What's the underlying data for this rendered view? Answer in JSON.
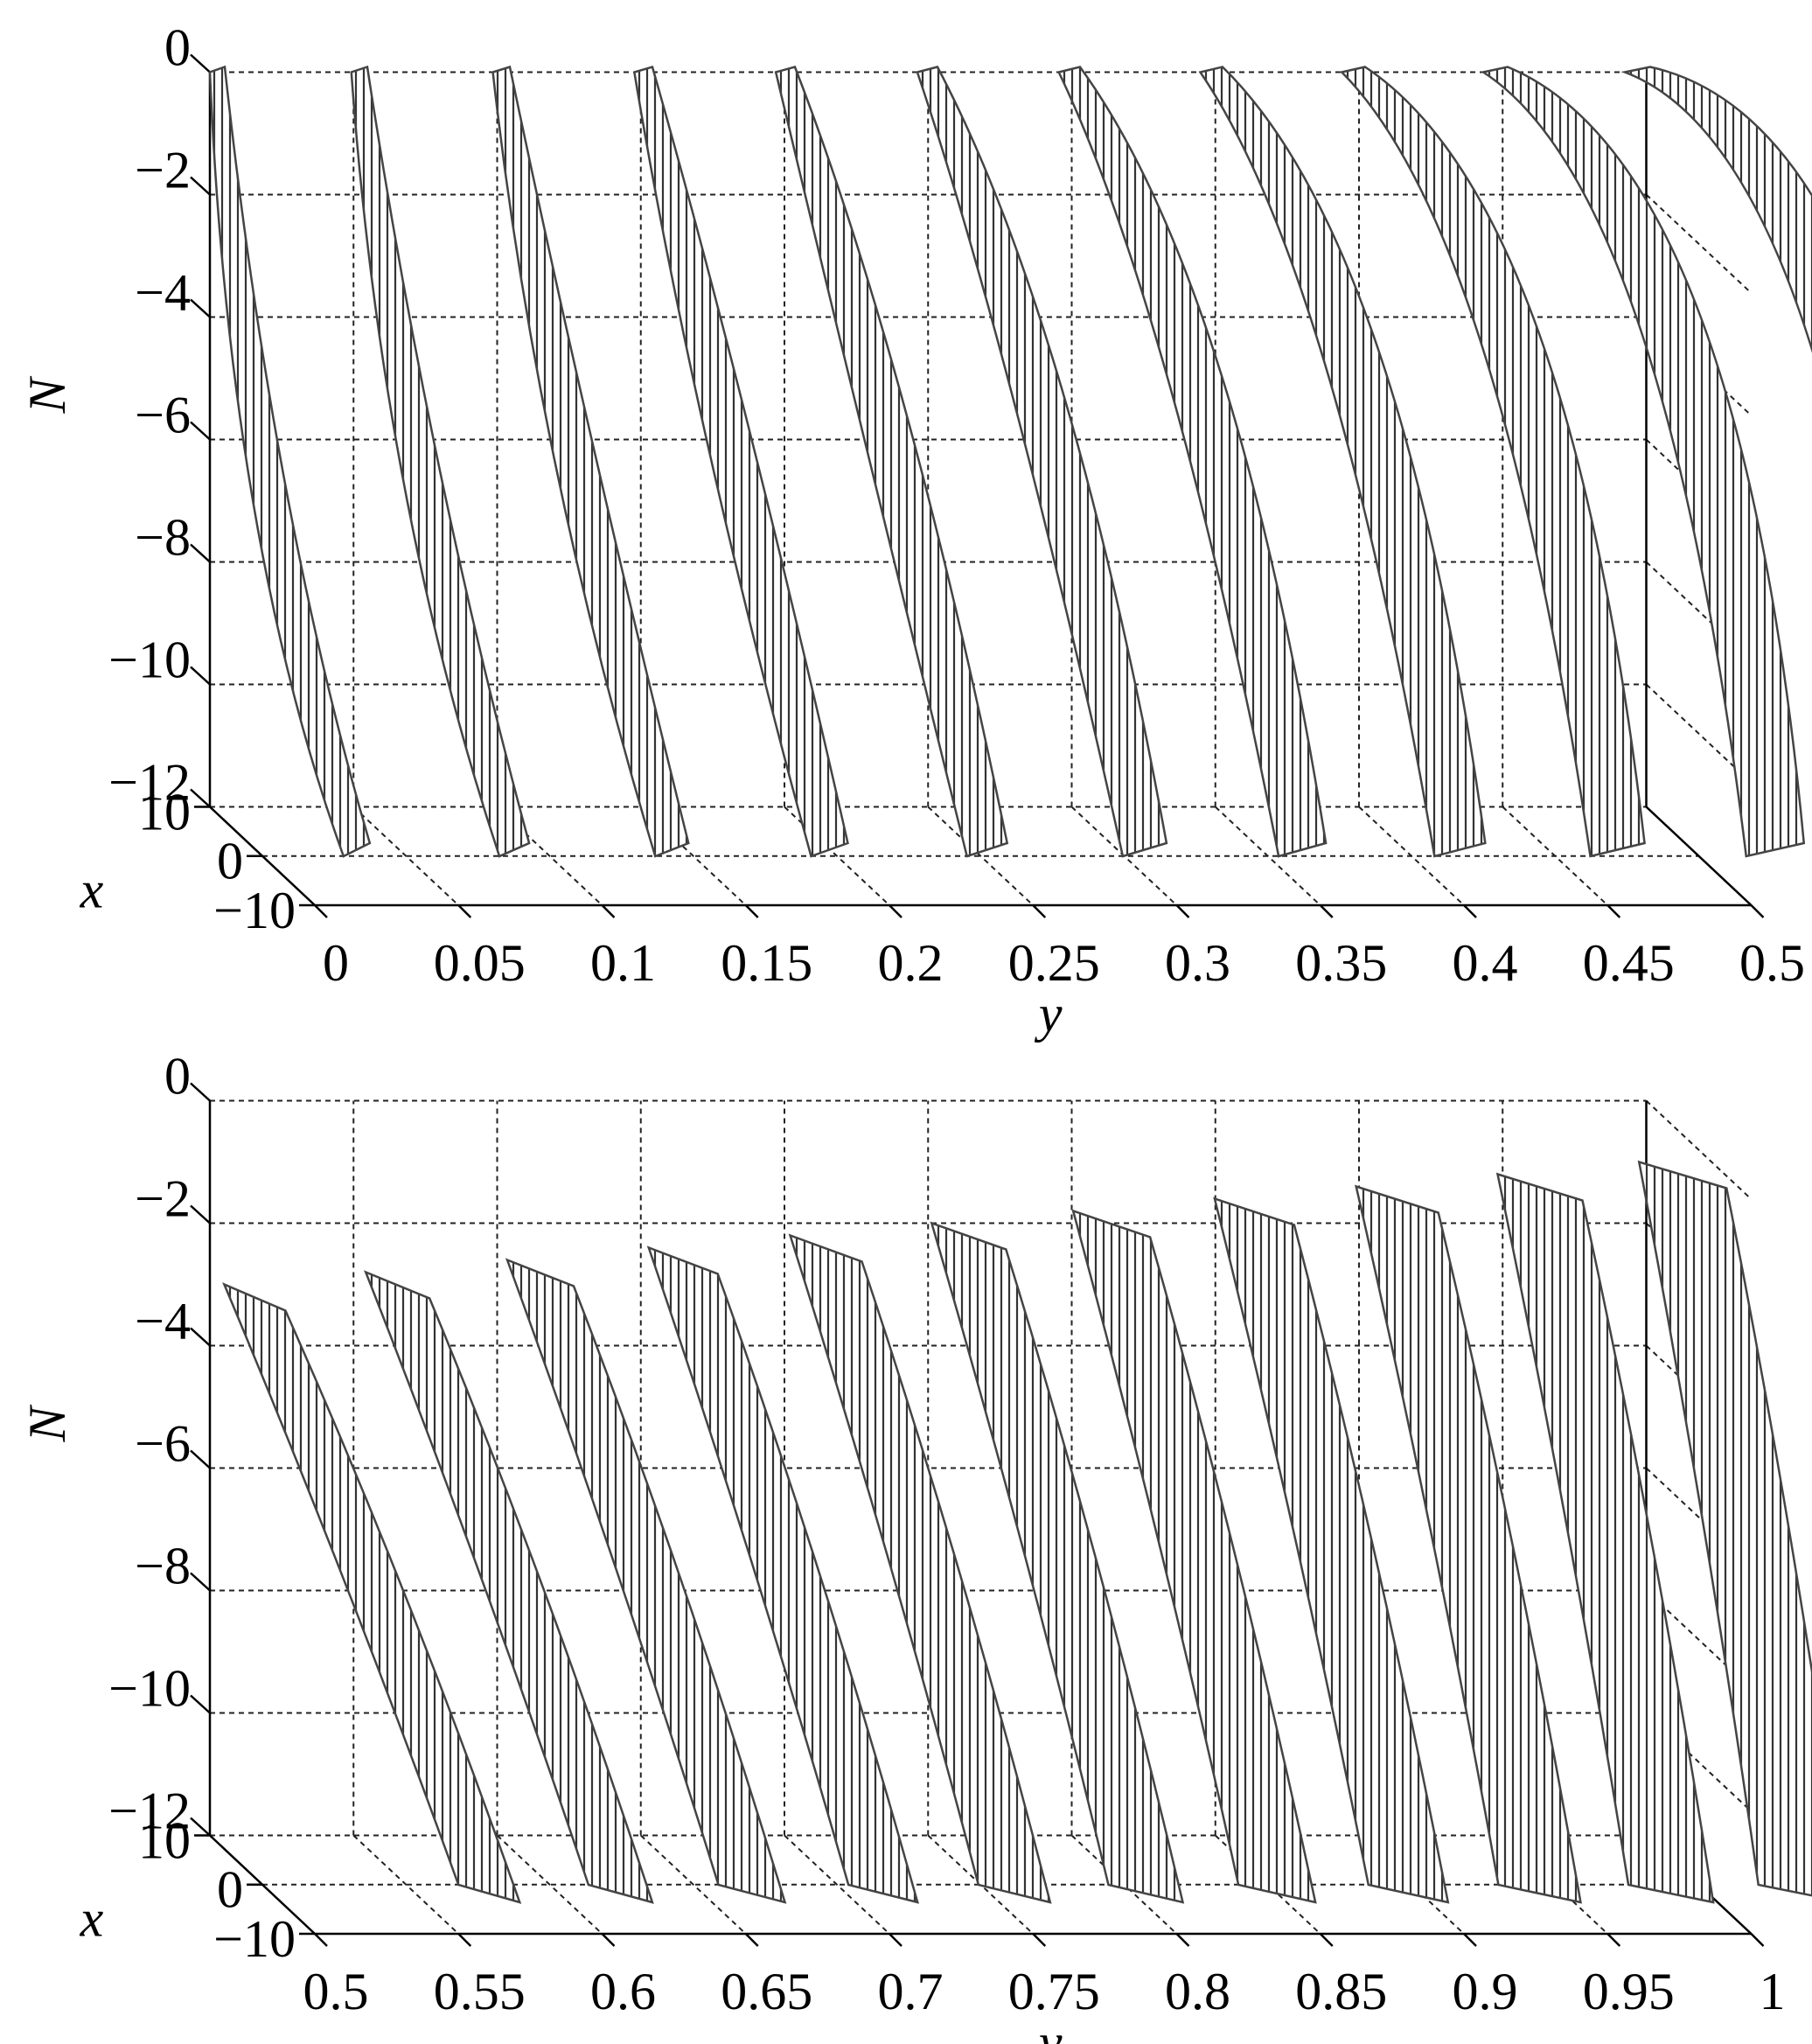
{
  "chart_data": [
    {
      "type": "surface3d",
      "xlabel": "x",
      "ylabel": "y",
      "zlabel": "N",
      "color": "#444444",
      "grid": true,
      "xlim": [
        -10,
        10
      ],
      "xticks": [
        10,
        0,
        {
          "value": -10,
          "label": "−10"
        }
      ],
      "ylim": [
        0,
        0.5
      ],
      "yticks": [
        0,
        0.05,
        0.1,
        0.15,
        0.2,
        0.25,
        0.3,
        0.35,
        0.4,
        0.45,
        0.5
      ],
      "zlim": [
        -12,
        0
      ],
      "zticks": [
        0,
        {
          "value": -2,
          "label": "−2"
        },
        {
          "value": -4,
          "label": "−4"
        },
        {
          "value": -6,
          "label": "−6"
        },
        {
          "value": -8,
          "label": "−8"
        },
        {
          "value": -10,
          "label": "−10"
        },
        {
          "value": -12,
          "label": "−12"
        }
      ]
    },
    {
      "type": "surface3d",
      "xlabel": "x",
      "ylabel": "y",
      "zlabel": "N",
      "color": "#444444",
      "grid": true,
      "xlim": [
        -10,
        10
      ],
      "xticks": [
        10,
        0,
        {
          "value": -10,
          "label": "−10"
        }
      ],
      "ylim": [
        0.5,
        1
      ],
      "yticks": [
        0.5,
        0.55,
        0.6,
        0.65,
        0.7,
        0.75,
        0.8,
        0.85,
        0.9,
        0.95,
        1
      ],
      "zlim": [
        -12,
        0
      ],
      "zticks": [
        0,
        {
          "value": -2,
          "label": "−2"
        },
        {
          "value": -4,
          "label": "−4"
        },
        {
          "value": -6,
          "label": "−6"
        },
        {
          "value": -8,
          "label": "−8"
        },
        {
          "value": -10,
          "label": "−10"
        },
        {
          "value": -12,
          "label": "−12"
        }
      ]
    }
  ]
}
